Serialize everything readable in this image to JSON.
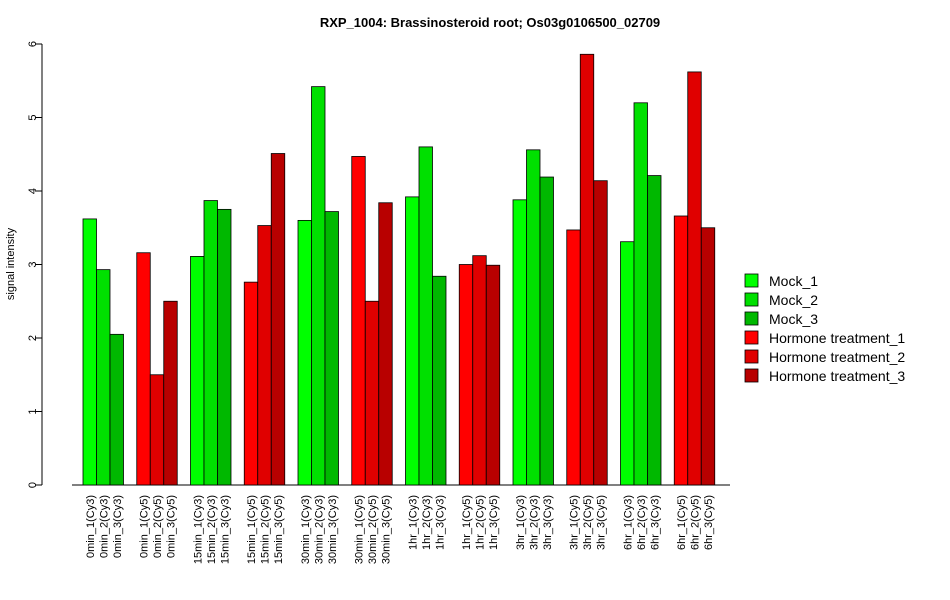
{
  "chart_data": {
    "type": "bar",
    "title": "RXP_1004: Brassinosteroid root; Os03g0106500_02709",
    "xlabel": "",
    "ylabel": "signal intensity",
    "ylim": [
      0,
      6
    ],
    "yticks": [
      "0",
      "1",
      "2",
      "3",
      "4",
      "5",
      "6"
    ],
    "grid": false,
    "legend_position": "right",
    "groups": [
      {
        "bars": [
          {
            "label": "0min_1(Cy3)",
            "value": 3.62,
            "series": 0
          },
          {
            "label": "0min_2(Cy3)",
            "value": 2.93,
            "series": 1
          },
          {
            "label": "0min_3(Cy3)",
            "value": 2.05,
            "series": 2
          }
        ]
      },
      {
        "bars": [
          {
            "label": "0min_1(Cy5)",
            "value": 3.16,
            "series": 3
          },
          {
            "label": "0min_2(Cy5)",
            "value": 1.5,
            "series": 4
          },
          {
            "label": "0min_3(Cy5)",
            "value": 2.5,
            "series": 5
          }
        ]
      },
      {
        "bars": [
          {
            "label": "15min_1(Cy3)",
            "value": 3.11,
            "series": 0
          },
          {
            "label": "15min_2(Cy3)",
            "value": 3.87,
            "series": 1
          },
          {
            "label": "15min_3(Cy3)",
            "value": 3.75,
            "series": 2
          }
        ]
      },
      {
        "bars": [
          {
            "label": "15min_1(Cy5)",
            "value": 2.76,
            "series": 3
          },
          {
            "label": "15min_2(Cy5)",
            "value": 3.53,
            "series": 4
          },
          {
            "label": "15min_3(Cy5)",
            "value": 4.51,
            "series": 5
          }
        ]
      },
      {
        "bars": [
          {
            "label": "30min_1(Cy3)",
            "value": 3.6,
            "series": 0
          },
          {
            "label": "30min_2(Cy3)",
            "value": 5.42,
            "series": 1
          },
          {
            "label": "30min_3(Cy3)",
            "value": 3.72,
            "series": 2
          }
        ]
      },
      {
        "bars": [
          {
            "label": "30min_1(Cy5)",
            "value": 4.47,
            "series": 3
          },
          {
            "label": "30min_2(Cy5)",
            "value": 2.5,
            "series": 4
          },
          {
            "label": "30min_3(Cy5)",
            "value": 3.84,
            "series": 5
          }
        ]
      },
      {
        "bars": [
          {
            "label": "1hr_1(Cy3)",
            "value": 3.92,
            "series": 0
          },
          {
            "label": "1hr_2(Cy3)",
            "value": 4.6,
            "series": 1
          },
          {
            "label": "1hr_3(Cy3)",
            "value": 2.84,
            "series": 2
          }
        ]
      },
      {
        "bars": [
          {
            "label": "1hr_1(Cy5)",
            "value": 3.0,
            "series": 3
          },
          {
            "label": "1hr_2(Cy5)",
            "value": 3.12,
            "series": 4
          },
          {
            "label": "1hr_3(Cy5)",
            "value": 2.99,
            "series": 5
          }
        ]
      },
      {
        "bars": [
          {
            "label": "3hr_1(Cy3)",
            "value": 3.88,
            "series": 0
          },
          {
            "label": "3hr_2(Cy3)",
            "value": 4.56,
            "series": 1
          },
          {
            "label": "3hr_3(Cy3)",
            "value": 4.19,
            "series": 2
          }
        ]
      },
      {
        "bars": [
          {
            "label": "3hr_1(Cy5)",
            "value": 3.47,
            "series": 3
          },
          {
            "label": "3hr_2(Cy5)",
            "value": 5.86,
            "series": 4
          },
          {
            "label": "3hr_3(Cy5)",
            "value": 4.14,
            "series": 5
          }
        ]
      },
      {
        "bars": [
          {
            "label": "6hr_1(Cy3)",
            "value": 3.31,
            "series": 0
          },
          {
            "label": "6hr_2(Cy3)",
            "value": 5.2,
            "series": 1
          },
          {
            "label": "6hr_3(Cy3)",
            "value": 4.21,
            "series": 2
          }
        ]
      },
      {
        "bars": [
          {
            "label": "6hr_1(Cy5)",
            "value": 3.66,
            "series": 3
          },
          {
            "label": "6hr_2(Cy5)",
            "value": 5.62,
            "series": 4
          },
          {
            "label": "6hr_3(Cy5)",
            "value": 3.5,
            "series": 5
          }
        ]
      }
    ],
    "series": [
      {
        "name": "Mock_1",
        "color": "#00ff00"
      },
      {
        "name": "Mock_2",
        "color": "#00e000"
      },
      {
        "name": "Mock_3",
        "color": "#00b800"
      },
      {
        "name": "Hormone treatment_1",
        "color": "#ff0000"
      },
      {
        "name": "Hormone treatment_2",
        "color": "#e00000"
      },
      {
        "name": "Hormone treatment_3",
        "color": "#b80000"
      }
    ]
  }
}
